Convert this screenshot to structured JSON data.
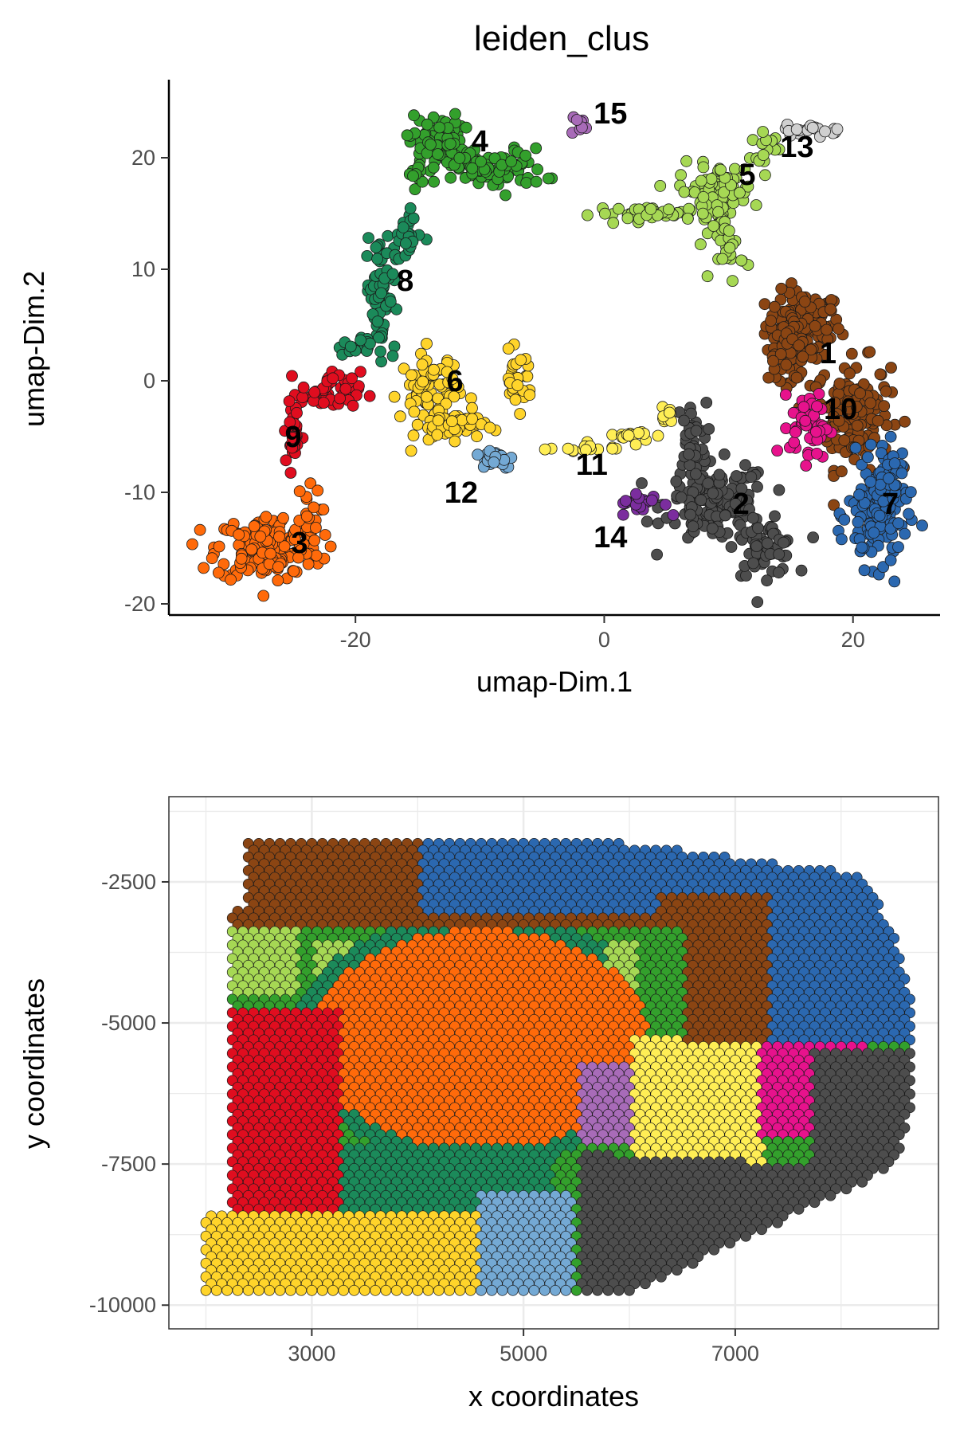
{
  "figure": {
    "title": "leiden_clus"
  },
  "palette": {
    "1": "#8b4513",
    "2": "#4d4d4d",
    "3": "#ff6a0a",
    "4": "#33a02c",
    "5": "#a6d854",
    "6": "#ffd42a",
    "7": "#2b68b0",
    "8": "#1b8a5a",
    "9": "#e00d1f",
    "10": "#e7128c",
    "11": "#ffee55",
    "12": "#74a9d4",
    "13": "#d0d0d0",
    "14": "#7b2d9e",
    "15": "#a86bb8"
  },
  "chart_data": [
    {
      "type": "scatter",
      "title": "leiden_clus",
      "xlabel": "umap-Dim.1",
      "ylabel": "umap-Dim.2",
      "xlim": [
        -35,
        27
      ],
      "ylim": [
        -21,
        27
      ],
      "xticks": [
        -20,
        0,
        20
      ],
      "yticks": [
        -20,
        -10,
        0,
        10,
        20
      ],
      "grid": false,
      "clusters": [
        {
          "id": "1",
          "label": "1",
          "label_pos": [
            18,
            2.5
          ],
          "regions": [
            [
              16,
              5,
              2.5,
              2.5,
              120
            ],
            [
              20,
              -3,
              2.5,
              4,
              160
            ],
            [
              15,
              2.5,
              1.5,
              2,
              60
            ]
          ]
        },
        {
          "id": "2",
          "label": "2",
          "label_pos": [
            11,
            -11
          ],
          "regions": [
            [
              9,
              -11,
              3.5,
              3,
              150
            ],
            [
              13,
              -15,
              2,
              2,
              60
            ],
            [
              7,
              -5,
              1,
              2.5,
              30
            ]
          ]
        },
        {
          "id": "3",
          "label": "3",
          "label_pos": [
            -24.5,
            -14.5
          ],
          "regions": [
            [
              -27,
              -15,
              3.5,
              2.5,
              170
            ],
            [
              -24,
              -12,
              1,
              2,
              20
            ]
          ]
        },
        {
          "id": "4",
          "label": "4",
          "label_pos": [
            -10,
            21.5
          ],
          "regions": [
            [
              -13.5,
              21.5,
              1.8,
              2,
              70
            ],
            [
              -9,
              19,
              3.5,
              1.5,
              90
            ],
            [
              -15,
              18.5,
              0.6,
              1,
              10
            ]
          ]
        },
        {
          "id": "5",
          "label": "5",
          "label_pos": [
            11.5,
            18.5
          ],
          "regions": [
            [
              9,
              17,
              2.5,
              2,
              80
            ],
            [
              4,
              15,
              4,
              0.5,
              40
            ],
            [
              10,
              12,
              1,
              2.5,
              30
            ],
            [
              13,
              21,
              1,
              1,
              15
            ]
          ]
        },
        {
          "id": "6",
          "label": "6",
          "label_pos": [
            -12,
            0
          ],
          "regions": [
            [
              -14,
              -1,
              2,
              3,
              80
            ],
            [
              -12,
              -4,
              2,
              1,
              50
            ],
            [
              -7,
              0,
              1,
              2,
              30
            ]
          ]
        },
        {
          "id": "7",
          "label": "7",
          "label_pos": [
            23,
            -11
          ],
          "regions": [
            [
              22,
              -12,
              2,
              4,
              130
            ],
            [
              23,
              -8,
              1,
              1.5,
              30
            ]
          ]
        },
        {
          "id": "8",
          "label": "8",
          "label_pos": [
            -16,
            9
          ],
          "regions": [
            [
              -18,
              8,
              1,
              4.5,
              70
            ],
            [
              -16,
              13,
              1,
              2,
              25
            ],
            [
              -20,
              3,
              1.2,
              0.6,
              15
            ]
          ]
        },
        {
          "id": "9",
          "label": "9",
          "label_pos": [
            -25,
            -5
          ],
          "regions": [
            [
              -22,
              -1,
              2,
              1.5,
              50
            ],
            [
              -25,
              -5,
              0.6,
              2.5,
              30
            ]
          ]
        },
        {
          "id": "10",
          "label": "10",
          "label_pos": [
            19,
            -2.5
          ],
          "regions": [
            [
              16.5,
              -4,
              1.3,
              2.5,
              50
            ]
          ]
        },
        {
          "id": "11",
          "label": "11",
          "label_pos": [
            -1,
            -7.5
          ],
          "regions": [
            [
              -2,
              -6,
              2.5,
              0.4,
              15
            ],
            [
              3,
              -5,
              1.5,
              0.5,
              15
            ],
            [
              5,
              -3,
              0.5,
              1,
              10
            ]
          ]
        },
        {
          "id": "12",
          "label": "12",
          "label_pos": [
            -11.5,
            -10
          ],
          "regions": [
            [
              -8.8,
              -7,
              1.3,
              0.7,
              40
            ]
          ]
        },
        {
          "id": "13",
          "label": "13",
          "label_pos": [
            15.5,
            21
          ],
          "regions": [
            [
              17,
              22.5,
              2,
              0.4,
              25
            ]
          ]
        },
        {
          "id": "14",
          "label": "14",
          "label_pos": [
            0.5,
            -14
          ],
          "regions": [
            [
              3,
              -11,
              1.5,
              0.8,
              25
            ]
          ]
        },
        {
          "id": "15",
          "label": "15",
          "label_pos": [
            0.5,
            24
          ],
          "regions": [
            [
              -2,
              23,
              0.5,
              0.8,
              8
            ]
          ]
        }
      ]
    },
    {
      "type": "scatter",
      "title": "",
      "xlabel": "x coordinates",
      "ylabel": "y coordinates",
      "xlim": [
        1650,
        8920
      ],
      "ylim": [
        -10420,
        -990
      ],
      "xticks": [
        3000,
        5000,
        7000
      ],
      "yticks": [
        -2500,
        -5000,
        -7500,
        -10000
      ],
      "grid": true,
      "spots": {
        "x_range": [
          1900,
          8700
        ],
        "y_range": [
          -10100,
          -1100
        ],
        "spacing": 100,
        "row_spacing": 120
      }
    }
  ]
}
